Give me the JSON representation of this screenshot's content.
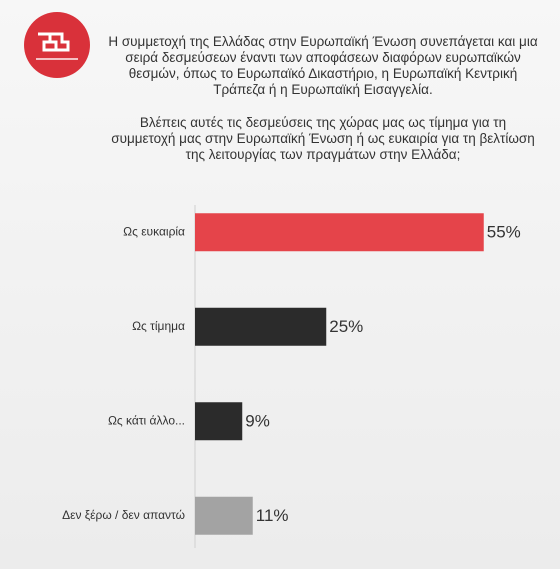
{
  "chart_data": {
    "type": "bar",
    "orientation": "horizontal",
    "title": "Η συμμετοχή της Ελλάδας στην Ευρωπαϊκή Ένωση συνεπάγεται και μια σειρά δεσμεύσεων έναντι των αποφάσεων διαφόρων ευρωπαϊκών θεσμών, όπως το Ευρωπαϊκό Δικαστήριο, η Ευρωπαϊκή Κεντρική Τράπεζα ή η Ευρωπαϊκή Εισαγγελία.",
    "subtitle": "Βλέπεις αυτές τις δεσμεύσεις της χώρας μας ως τίμημα για τη συμμετοχή μας στην Ευρωπαϊκή Ένωση ή ως ευκαιρία για τη βελτίωση της λειτουργίας των πραγμάτων στην Ελλάδα;",
    "categories": [
      "Ως ευκαιρία",
      "Ως τίμημα",
      "Ως κάτι άλλο...",
      "Δεν ξέρω / δεν απαντώ"
    ],
    "values": [
      55,
      25,
      9,
      11
    ],
    "value_labels": [
      "55%",
      "25%",
      "9%",
      "11%"
    ],
    "colors": [
      "#e5444a",
      "#2b2b2b",
      "#2b2b2b",
      "#a3a3a3"
    ]
  }
}
